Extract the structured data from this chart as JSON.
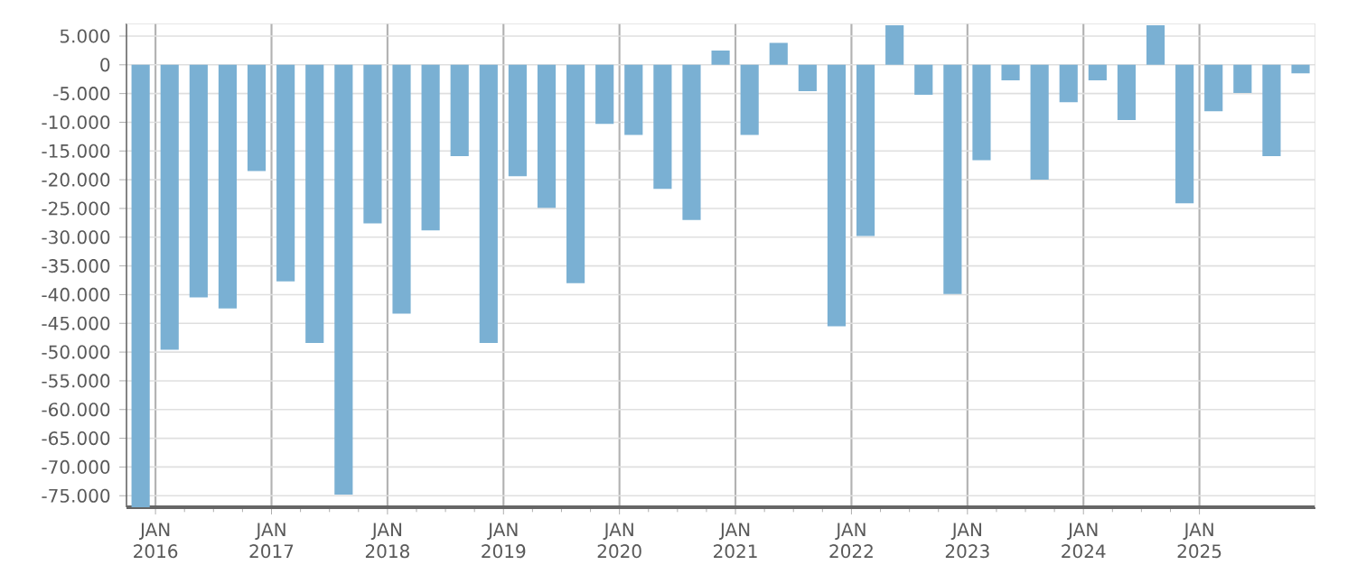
{
  "chart_data": {
    "type": "bar",
    "color": "#7ab0d3",
    "x": [
      "2015-11-15",
      "2016-02-15",
      "2016-05-15",
      "2016-08-15",
      "2016-11-15",
      "2017-02-15",
      "2017-05-15",
      "2017-08-15",
      "2017-11-15",
      "2018-02-15",
      "2018-05-15",
      "2018-08-15",
      "2018-11-15",
      "2019-02-15",
      "2019-05-15",
      "2019-08-15",
      "2019-11-15",
      "2020-02-15",
      "2020-05-15",
      "2020-08-15",
      "2020-11-15",
      "2021-02-15",
      "2021-05-15",
      "2021-08-15",
      "2021-11-15",
      "2022-02-15",
      "2022-05-15",
      "2022-08-15",
      "2022-11-15",
      "2023-02-15",
      "2023-05-15",
      "2023-08-15",
      "2023-11-15",
      "2024-02-15",
      "2024-05-15",
      "2024-08-15",
      "2024-11-15",
      "2025-02-15",
      "2025-05-15",
      "2025-08-15",
      "2025-11-15"
    ],
    "values": [
      -77000,
      -49600,
      -40500,
      -42400,
      -18500,
      -37700,
      -48400,
      -74800,
      -27600,
      -43300,
      -28800,
      -15900,
      -48400,
      -19400,
      -24900,
      -38000,
      -10300,
      -12200,
      -21600,
      -27000,
      2500,
      -12200,
      3800,
      -4600,
      -45500,
      -29800,
      6900,
      -5200,
      -39900,
      -16600,
      -2700,
      -20000,
      -6500,
      -2700,
      -9600,
      6900,
      -24100,
      -8100,
      -4900,
      -15900,
      -1500
    ],
    "xlim": [
      "2015-10-01",
      "2026-01-01"
    ],
    "ylim": [
      -77000,
      7200
    ],
    "xticks": [
      {
        "value": "2016-01-01",
        "label": "JAN 2016"
      },
      {
        "value": "2017-01-01",
        "label": "JAN 2017"
      },
      {
        "value": "2018-01-01",
        "label": "JAN 2018"
      },
      {
        "value": "2019-01-01",
        "label": "JAN 2019"
      },
      {
        "value": "2020-01-01",
        "label": "JAN 2020"
      },
      {
        "value": "2021-01-01",
        "label": "JAN 2021"
      },
      {
        "value": "2022-01-01",
        "label": "JAN 2022"
      },
      {
        "value": "2023-01-01",
        "label": "JAN 2023"
      },
      {
        "value": "2024-01-01",
        "label": "JAN 2024"
      },
      {
        "value": "2025-01-01",
        "label": "JAN 2025"
      }
    ],
    "yticks": [
      {
        "value": 5000,
        "label": "5.000"
      },
      0,
      {
        "value": -5000,
        "label": "-5.000"
      },
      {
        "value": -10000,
        "label": "-10.000"
      },
      {
        "value": -15000,
        "label": "-15.000"
      },
      {
        "value": -20000,
        "label": "-20.000"
      },
      {
        "value": -25000,
        "label": "-25.000"
      },
      {
        "value": -30000,
        "label": "-30.000"
      },
      {
        "value": -35000,
        "label": "-35.000"
      },
      {
        "value": -40000,
        "label": "-40.000"
      },
      {
        "value": -45000,
        "label": "-45.000"
      },
      {
        "value": -50000,
        "label": "-50.000"
      },
      {
        "value": -55000,
        "label": "-55.000"
      },
      {
        "value": -60000,
        "label": "-60.000"
      },
      {
        "value": -65000,
        "label": "-65.000"
      },
      {
        "value": -70000,
        "label": "-70.000"
      },
      {
        "value": -75000,
        "label": "-75.000"
      }
    ],
    "grid": true
  }
}
